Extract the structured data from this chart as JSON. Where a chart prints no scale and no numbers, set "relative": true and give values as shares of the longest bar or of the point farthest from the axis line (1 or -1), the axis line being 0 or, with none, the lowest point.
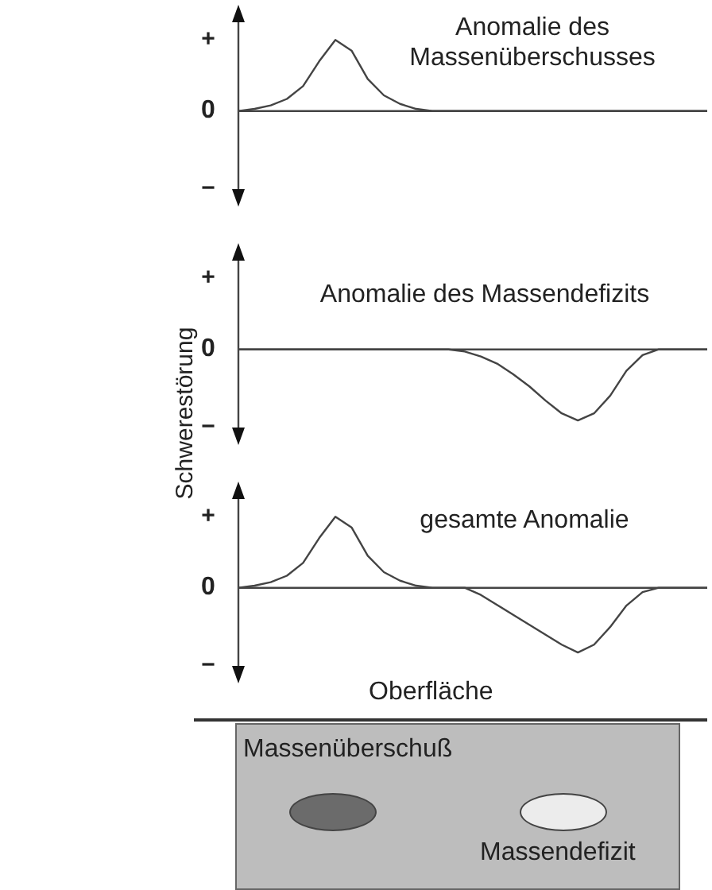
{
  "chart_data": [
    {
      "type": "line",
      "title": "Anomalie des Massenüberschusses",
      "relative": true,
      "color": "#444444",
      "categories": [
        null,
        null,
        null,
        null,
        null,
        null,
        null,
        null,
        null,
        null,
        null,
        null,
        null,
        null,
        null,
        null,
        null,
        null,
        null,
        null,
        null,
        null,
        null,
        null,
        null,
        null,
        null,
        null,
        null,
        null
      ],
      "values": [
        0,
        0.03,
        0.08,
        0.17,
        0.35,
        0.7,
        1,
        0.85,
        0.45,
        0.22,
        0.1,
        0.03,
        0,
        0,
        0,
        0,
        0,
        0,
        0,
        0,
        0,
        0,
        0,
        0,
        0,
        0,
        0,
        0,
        0,
        0
      ],
      "annotations": [
        "+",
        "0",
        "−"
      ]
    },
    {
      "type": "line",
      "title": "Anomalie des Massendefizits",
      "ylabel": "Schwerestörung",
      "relative": true,
      "color": "#444444",
      "categories": [
        null,
        null,
        null,
        null,
        null,
        null,
        null,
        null,
        null,
        null,
        null,
        null,
        null,
        null,
        null,
        null,
        null,
        null,
        null,
        null,
        null,
        null,
        null,
        null,
        null,
        null,
        null,
        null,
        null,
        null
      ],
      "values": [
        0,
        0,
        0,
        0,
        0,
        0,
        0,
        0,
        0,
        0,
        0,
        0,
        0,
        0,
        -0.03,
        -0.1,
        -0.2,
        -0.35,
        -0.52,
        -0.72,
        -0.9,
        -1,
        -0.9,
        -0.65,
        -0.3,
        -0.08,
        0,
        0,
        0,
        0
      ],
      "annotations": [
        "+",
        "0",
        "−"
      ]
    },
    {
      "type": "line",
      "title": "gesamte Anomalie",
      "relative": true,
      "color": "#444444",
      "categories": [
        null,
        null,
        null,
        null,
        null,
        null,
        null,
        null,
        null,
        null,
        null,
        null,
        null,
        null,
        null,
        null,
        null,
        null,
        null,
        null,
        null,
        null,
        null,
        null,
        null,
        null,
        null,
        null,
        null,
        null
      ],
      "values": [
        0,
        0.03,
        0.08,
        0.17,
        0.35,
        0.7,
        1,
        0.85,
        0.45,
        0.22,
        0.1,
        0.03,
        0,
        0,
        0,
        -0.1,
        -0.24,
        -0.38,
        -0.52,
        -0.66,
        -0.8,
        -0.91,
        -0.8,
        -0.55,
        -0.25,
        -0.06,
        0,
        0,
        0,
        0
      ],
      "annotations": [
        "+",
        "0",
        "−",
        "Oberfläche",
        "Massenüberschuß",
        "Massendefizit"
      ]
    }
  ]
}
